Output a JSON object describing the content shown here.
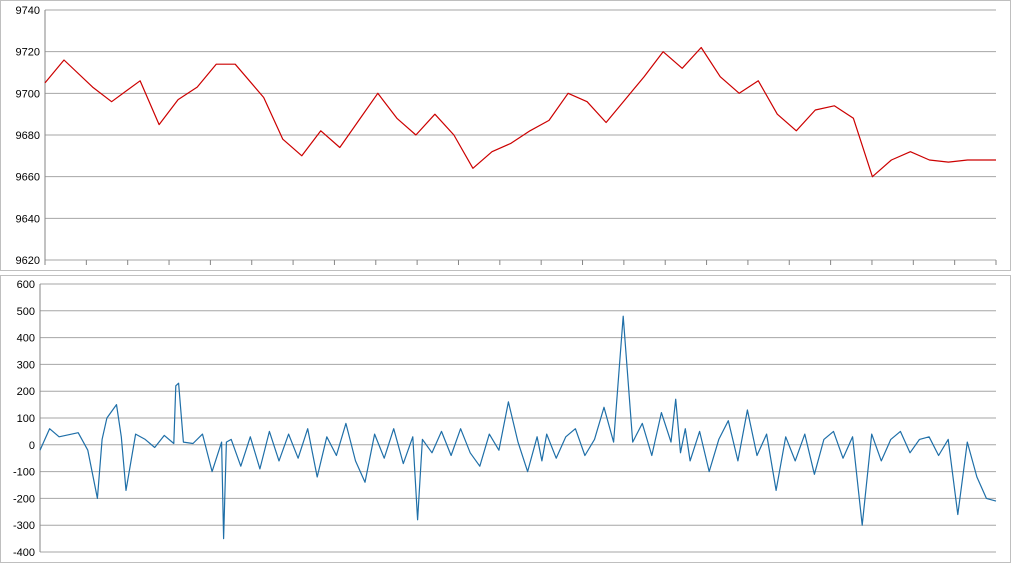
{
  "chart_data": [
    {
      "type": "line",
      "title": "",
      "xlabel": "",
      "ylabel": "",
      "ylim": [
        9620,
        9740
      ],
      "yticks": [
        "9740",
        "9720",
        "9700",
        "9680",
        "9660",
        "9640",
        "9620"
      ],
      "grid": true,
      "legend": "none",
      "series": [
        {
          "color": "#cc0000",
          "x": [
            0,
            2,
            5,
            7,
            10,
            12,
            14,
            16,
            18,
            20,
            23,
            25,
            27,
            29,
            31,
            33,
            35,
            37,
            39,
            41,
            43,
            45,
            47,
            49,
            51,
            53,
            55,
            57,
            59,
            61,
            63,
            65,
            67,
            69,
            71,
            73,
            75,
            77,
            79,
            81,
            83,
            85,
            87,
            89,
            91,
            93,
            95,
            97,
            99,
            100
          ],
          "values": [
            9705,
            9716,
            9703,
            9696,
            9706,
            9685,
            9697,
            9703,
            9714,
            9714,
            9698,
            9678,
            9670,
            9682,
            9674,
            9687,
            9700,
            9688,
            9680,
            9690,
            9680,
            9664,
            9672,
            9676,
            9682,
            9687,
            9700,
            9696,
            9686,
            9697,
            9708,
            9720,
            9712,
            9722,
            9708,
            9700,
            9706,
            9690,
            9682,
            9692,
            9694,
            9688,
            9660,
            9668,
            9672,
            9668,
            9667,
            9668,
            9668,
            9668
          ]
        }
      ]
    },
    {
      "type": "line",
      "title": "",
      "xlabel": "",
      "ylabel": "",
      "ylim": [
        -400,
        600
      ],
      "yticks": [
        "600",
        "500",
        "400",
        "300",
        "200",
        "100",
        "0",
        "-100",
        "-200",
        "-300",
        "-400"
      ],
      "grid": true,
      "legend": "none",
      "series": [
        {
          "color": "#1f6fa8",
          "x": [
            0,
            1,
            2,
            4,
            5,
            6,
            6.5,
            7,
            8,
            8.5,
            9,
            10,
            11,
            12,
            13,
            14,
            14.2,
            14.5,
            15,
            16,
            17,
            18,
            19,
            19.2,
            19.5,
            20,
            21,
            22,
            23,
            24,
            25,
            26,
            27,
            28,
            29,
            30,
            31,
            32,
            33,
            34,
            35,
            36,
            37,
            38,
            39,
            39.5,
            40,
            41,
            42,
            43,
            44,
            45,
            46,
            47,
            48,
            49,
            50,
            51,
            52,
            52.5,
            53,
            54,
            55,
            56,
            57,
            58,
            59,
            60,
            61,
            62,
            63,
            64,
            65,
            66,
            66.5,
            67,
            67.5,
            68,
            69,
            70,
            71,
            72,
            73,
            74,
            75,
            76,
            77,
            78,
            79,
            80,
            81,
            82,
            83,
            84,
            85,
            86,
            87,
            88,
            89,
            90,
            91,
            92,
            93,
            94,
            95,
            96,
            97,
            98,
            99,
            100
          ],
          "values": [
            -20,
            60,
            30,
            45,
            -20,
            -200,
            20,
            100,
            150,
            30,
            -170,
            40,
            20,
            -10,
            35,
            5,
            220,
            230,
            10,
            5,
            40,
            -100,
            10,
            -350,
            10,
            20,
            -80,
            30,
            -90,
            50,
            -60,
            40,
            -50,
            60,
            -120,
            30,
            -40,
            80,
            -60,
            -140,
            40,
            -50,
            60,
            -70,
            30,
            -280,
            20,
            -30,
            50,
            -40,
            60,
            -30,
            -80,
            40,
            -20,
            160,
            10,
            -100,
            30,
            -60,
            40,
            -50,
            30,
            60,
            -40,
            20,
            140,
            10,
            480,
            10,
            80,
            -40,
            120,
            10,
            170,
            -30,
            60,
            -60,
            50,
            -100,
            20,
            90,
            -60,
            130,
            -40,
            40,
            -170,
            30,
            -60,
            40,
            -110,
            20,
            50,
            -50,
            30,
            -300,
            40,
            -60,
            20,
            50,
            -30,
            20,
            30,
            -40,
            20,
            -260,
            10,
            -120,
            -200,
            -210
          ]
        }
      ]
    }
  ]
}
